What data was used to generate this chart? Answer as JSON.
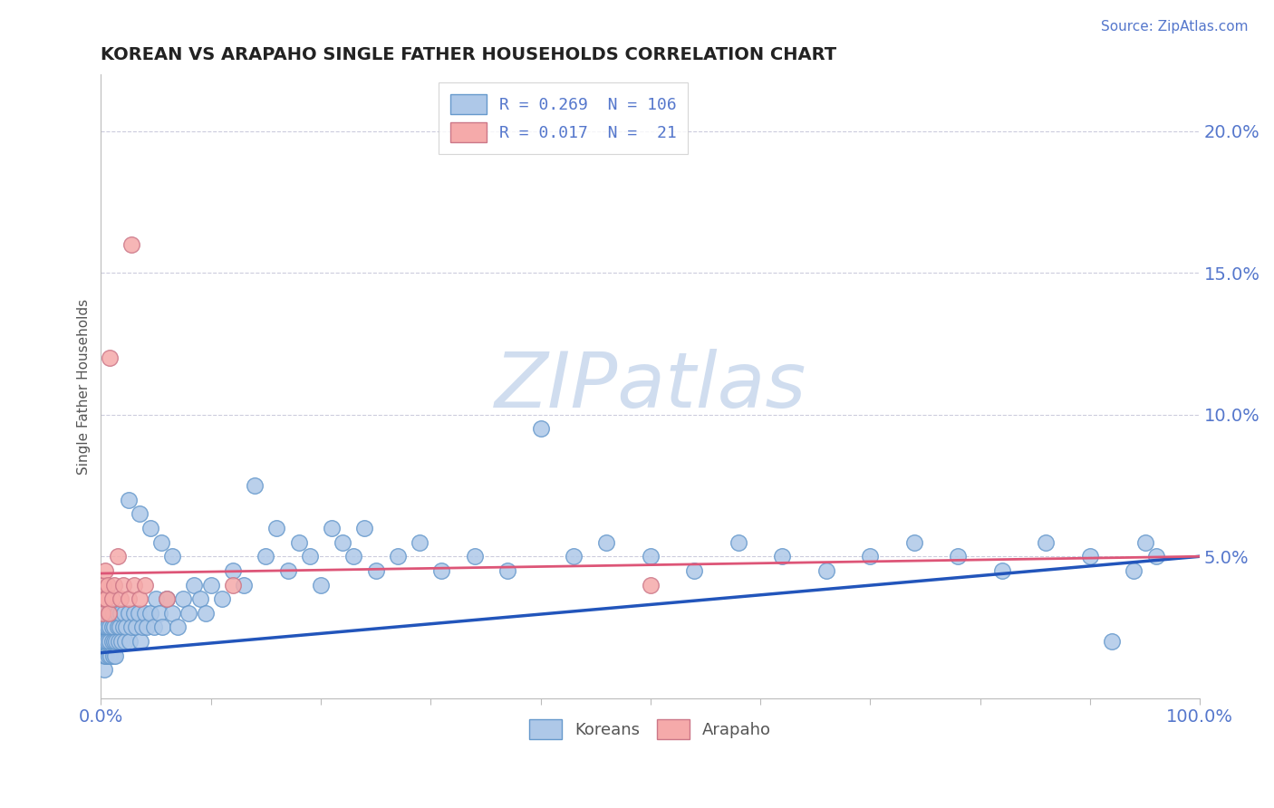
{
  "title": "KOREAN VS ARAPAHO SINGLE FATHER HOUSEHOLDS CORRELATION CHART",
  "source_text": "Source: ZipAtlas.com",
  "ylabel": "Single Father Households",
  "xlim": [
    0.0,
    1.0
  ],
  "ylim": [
    0.0,
    0.22
  ],
  "yticks": [
    0.05,
    0.1,
    0.15,
    0.2
  ],
  "yticklabels": [
    "5.0%",
    "10.0%",
    "15.0%",
    "20.0%"
  ],
  "xtick_left_label": "0.0%",
  "xtick_right_label": "100.0%",
  "korean_color": "#aec8e8",
  "korean_edge_color": "#6699cc",
  "arapaho_color": "#f5aaaa",
  "arapaho_edge_color": "#cc7788",
  "trend_korean_color": "#2255bb",
  "trend_arapaho_color": "#dd5577",
  "grid_color": "#ccccdd",
  "watermark_color": "#d0ddef",
  "legend_korean_label": "R = 0.269  N = 106",
  "legend_arapaho_label": "R = 0.017  N =  21",
  "bottom_legend_korean": "Koreans",
  "bottom_legend_arapaho": "Arapaho",
  "tick_color": "#5577cc",
  "title_color": "#222222",
  "source_color": "#5577cc",
  "korean_x": [
    0.001,
    0.002,
    0.002,
    0.003,
    0.003,
    0.003,
    0.004,
    0.004,
    0.004,
    0.005,
    0.005,
    0.005,
    0.006,
    0.006,
    0.006,
    0.007,
    0.007,
    0.008,
    0.008,
    0.009,
    0.009,
    0.01,
    0.01,
    0.011,
    0.011,
    0.012,
    0.012,
    0.013,
    0.014,
    0.015,
    0.015,
    0.016,
    0.017,
    0.018,
    0.019,
    0.02,
    0.021,
    0.022,
    0.023,
    0.025,
    0.026,
    0.028,
    0.03,
    0.032,
    0.034,
    0.036,
    0.038,
    0.04,
    0.042,
    0.045,
    0.048,
    0.05,
    0.053,
    0.056,
    0.06,
    0.065,
    0.07,
    0.075,
    0.08,
    0.085,
    0.09,
    0.095,
    0.1,
    0.11,
    0.12,
    0.13,
    0.14,
    0.15,
    0.16,
    0.17,
    0.18,
    0.19,
    0.2,
    0.21,
    0.22,
    0.23,
    0.24,
    0.25,
    0.27,
    0.29,
    0.31,
    0.34,
    0.37,
    0.4,
    0.43,
    0.46,
    0.5,
    0.54,
    0.58,
    0.62,
    0.66,
    0.7,
    0.74,
    0.78,
    0.82,
    0.86,
    0.9,
    0.94,
    0.95,
    0.96,
    0.025,
    0.035,
    0.045,
    0.055,
    0.065,
    0.92
  ],
  "korean_y": [
    0.02,
    0.025,
    0.015,
    0.03,
    0.02,
    0.01,
    0.025,
    0.015,
    0.03,
    0.02,
    0.025,
    0.015,
    0.03,
    0.02,
    0.025,
    0.015,
    0.03,
    0.02,
    0.025,
    0.015,
    0.03,
    0.02,
    0.025,
    0.015,
    0.03,
    0.02,
    0.025,
    0.015,
    0.02,
    0.025,
    0.03,
    0.02,
    0.025,
    0.03,
    0.02,
    0.025,
    0.03,
    0.02,
    0.025,
    0.03,
    0.02,
    0.025,
    0.03,
    0.025,
    0.03,
    0.02,
    0.025,
    0.03,
    0.025,
    0.03,
    0.025,
    0.035,
    0.03,
    0.025,
    0.035,
    0.03,
    0.025,
    0.035,
    0.03,
    0.04,
    0.035,
    0.03,
    0.04,
    0.035,
    0.045,
    0.04,
    0.075,
    0.05,
    0.06,
    0.045,
    0.055,
    0.05,
    0.04,
    0.06,
    0.055,
    0.05,
    0.06,
    0.045,
    0.05,
    0.055,
    0.045,
    0.05,
    0.045,
    0.095,
    0.05,
    0.055,
    0.05,
    0.045,
    0.055,
    0.05,
    0.045,
    0.05,
    0.055,
    0.05,
    0.045,
    0.055,
    0.05,
    0.045,
    0.055,
    0.05,
    0.07,
    0.065,
    0.06,
    0.055,
    0.05,
    0.02
  ],
  "arapaho_x": [
    0.001,
    0.002,
    0.003,
    0.004,
    0.005,
    0.006,
    0.007,
    0.008,
    0.01,
    0.012,
    0.015,
    0.018,
    0.02,
    0.025,
    0.028,
    0.03,
    0.035,
    0.04,
    0.06,
    0.12,
    0.5
  ],
  "arapaho_y": [
    0.03,
    0.04,
    0.035,
    0.045,
    0.035,
    0.04,
    0.03,
    0.12,
    0.035,
    0.04,
    0.05,
    0.035,
    0.04,
    0.035,
    0.16,
    0.04,
    0.035,
    0.04,
    0.035,
    0.04,
    0.04
  ],
  "korean_trend_x0": 0.0,
  "korean_trend_y0": 0.016,
  "korean_trend_x1": 1.0,
  "korean_trend_y1": 0.05,
  "arapaho_trend_x0": 0.0,
  "arapaho_trend_y0": 0.044,
  "arapaho_trend_x1": 1.0,
  "arapaho_trend_y1": 0.05
}
